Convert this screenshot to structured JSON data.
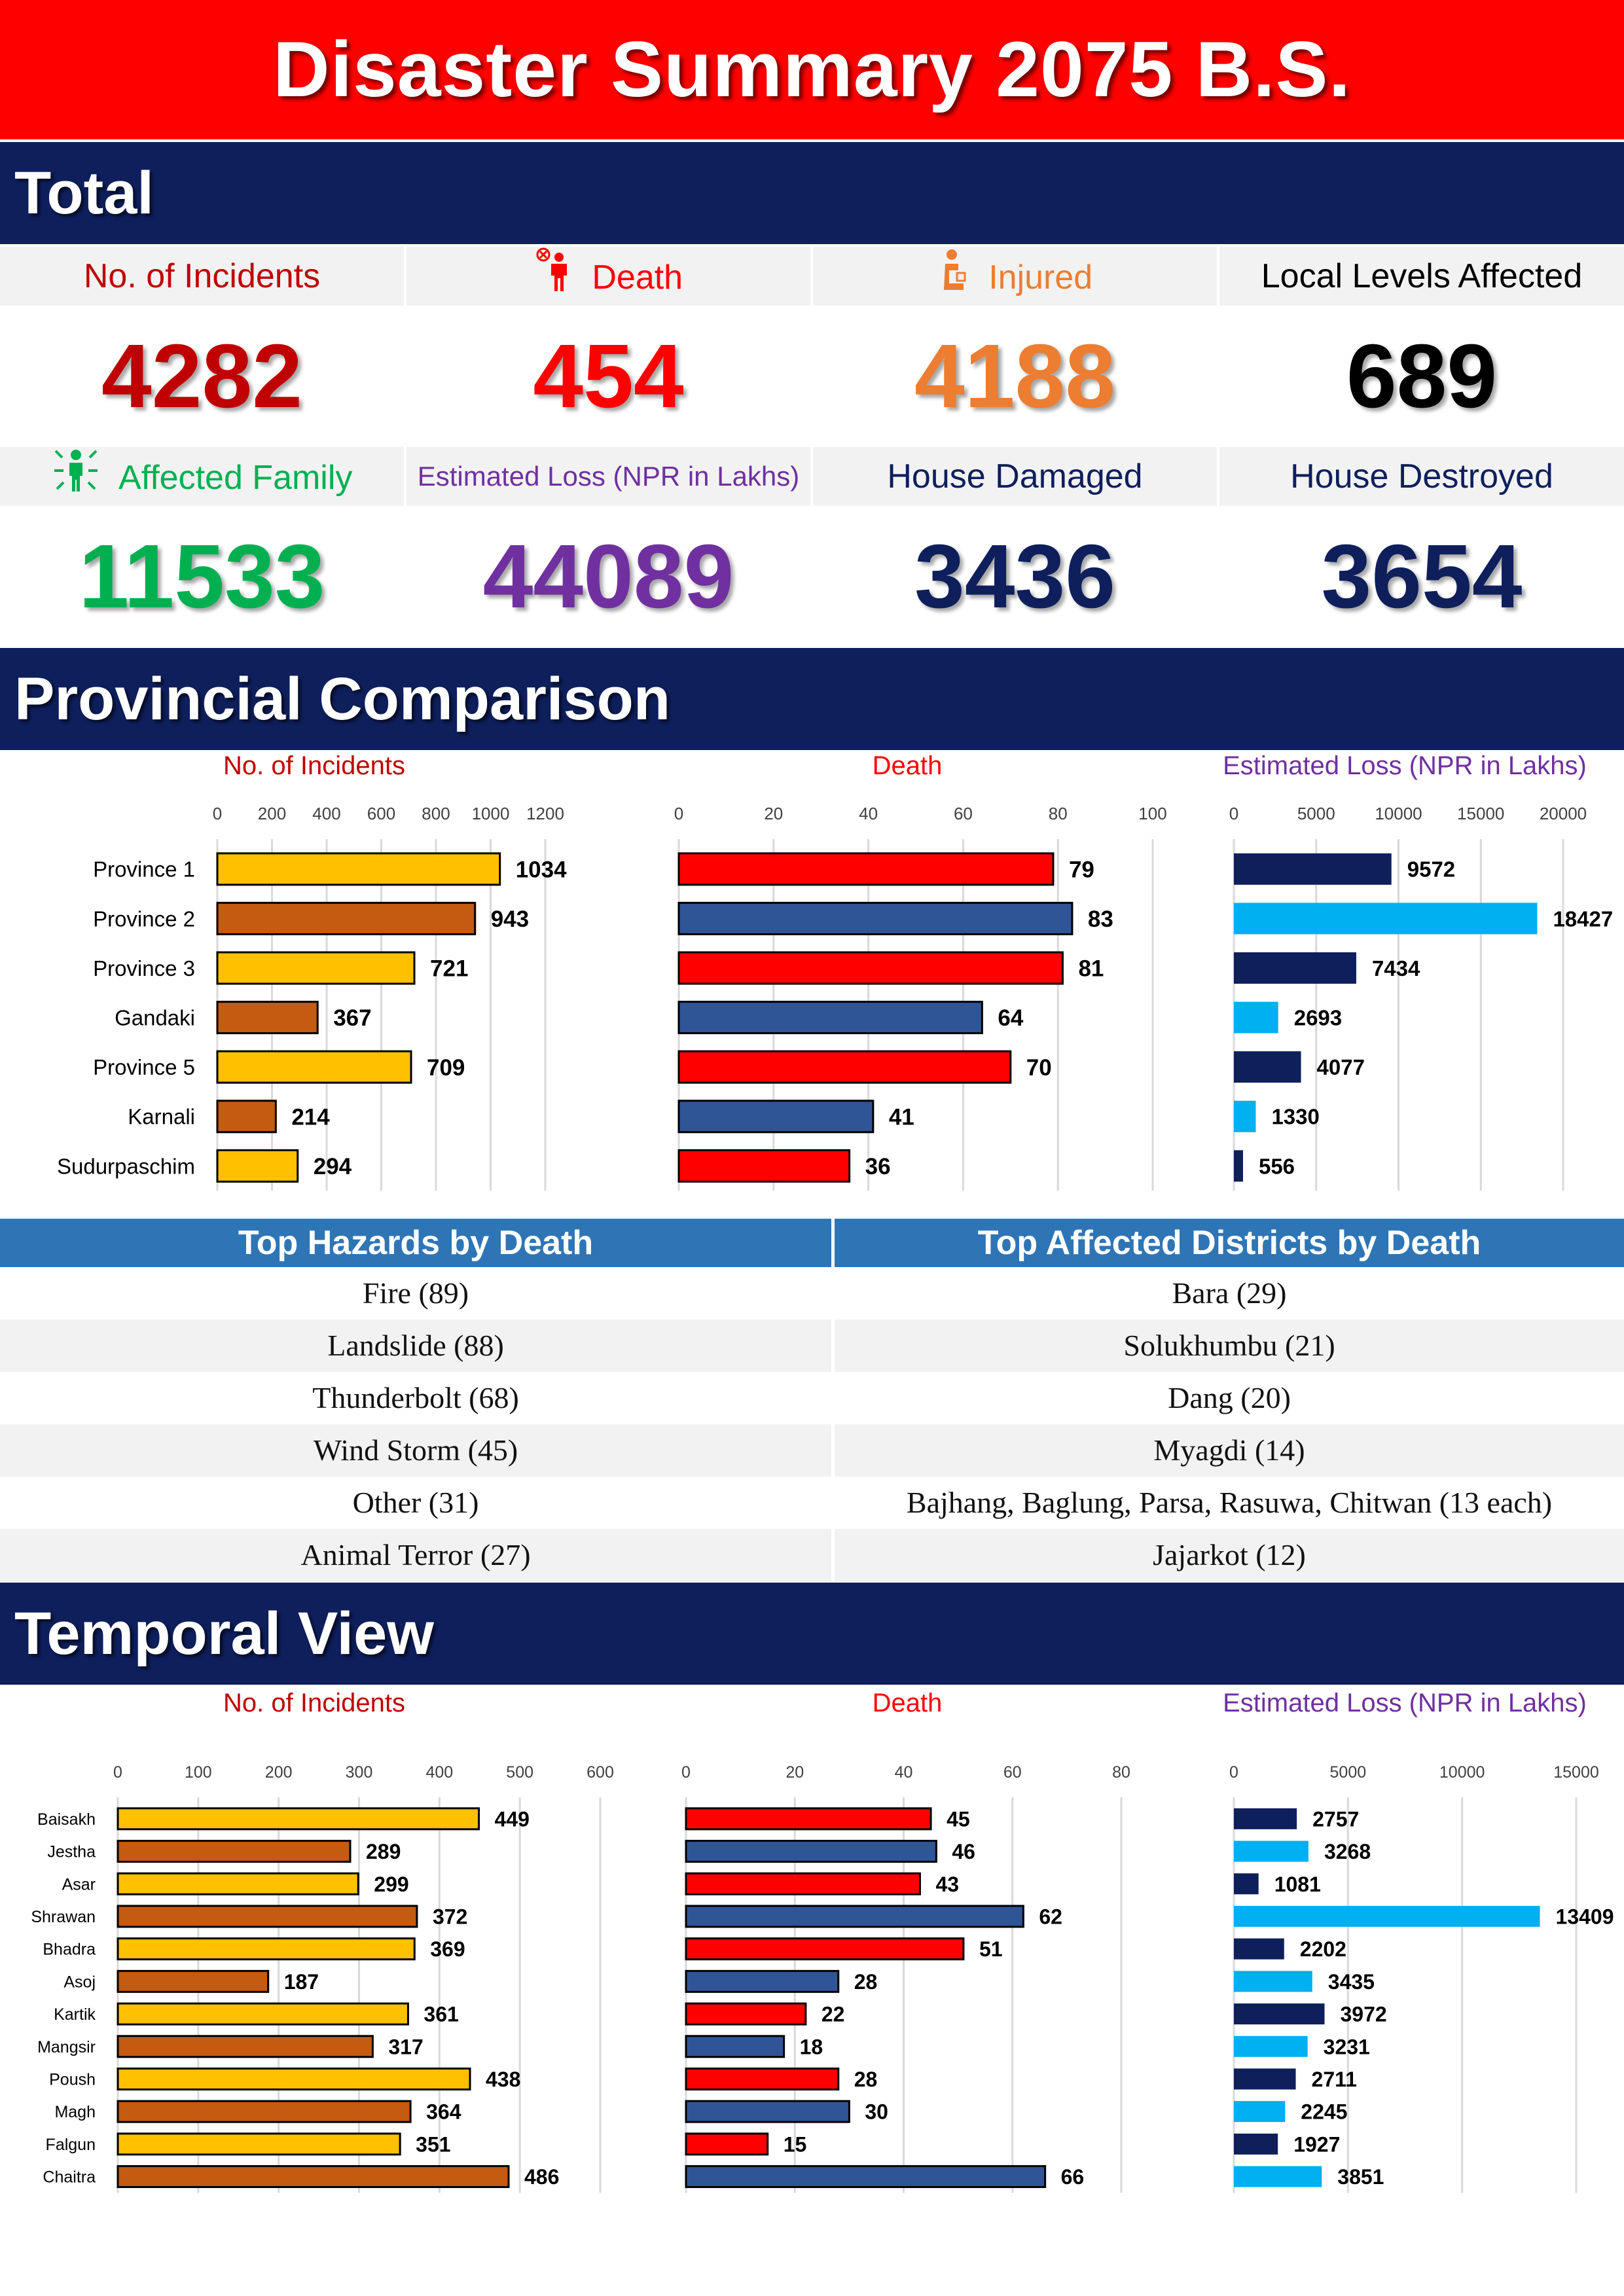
{
  "title": "Disaster Summary 2075 B.S.",
  "sections": {
    "total": "Total",
    "provincial": "Provincial Comparison",
    "temporal": "Temporal View"
  },
  "stats": [
    {
      "label": "No. of Incidents",
      "value": "4282",
      "color": "#c00000",
      "icon": ""
    },
    {
      "label": "Death",
      "value": "454",
      "color": "#fe0000",
      "icon": "person-death-icon"
    },
    {
      "label": "Injured",
      "value": "4188",
      "color": "#ed7d31",
      "icon": "person-injured-icon"
    },
    {
      "label": "Local Levels Affected",
      "value": "689",
      "color": "#000000",
      "icon": ""
    },
    {
      "label": "Affected Family",
      "value": "11533",
      "color": "#00b050",
      "icon": "affected-family-icon"
    },
    {
      "label": "Estimated Loss (NPR in Lakhs)",
      "value": "44089",
      "color": "#7030a0",
      "icon": ""
    },
    {
      "label": "House Damaged",
      "value": "3436",
      "color": "#0e1f5c",
      "icon": ""
    },
    {
      "label": "House Destroyed",
      "value": "3654",
      "color": "#0e1f5c",
      "icon": ""
    }
  ],
  "colors": {
    "gold": "#ffc000",
    "rust": "#c55a11",
    "red": "#fe0000",
    "blue": "#2f5597",
    "navy": "#0e1f5c",
    "cyan": "#00b0f0"
  },
  "chart_data": [
    {
      "id": "prov-incidents",
      "type": "bar",
      "orientation": "horizontal",
      "title": "No. of Incidents",
      "categories": [
        "Province 1",
        "Province 2",
        "Province 3",
        "Gandaki",
        "Province 5",
        "Karnali",
        "Sudurpaschim"
      ],
      "values": [
        1034,
        943,
        721,
        367,
        709,
        214,
        294
      ],
      "xlim": [
        0,
        1200
      ],
      "ticks": [
        0,
        200,
        400,
        600,
        800,
        1000,
        1200
      ],
      "grid": true,
      "bar_colors": [
        "#ffc000",
        "#c55a11"
      ]
    },
    {
      "id": "prov-death",
      "type": "bar",
      "orientation": "horizontal",
      "title": "Death",
      "categories": [
        "Province 1",
        "Province 2",
        "Province 3",
        "Gandaki",
        "Province 5",
        "Karnali",
        "Sudurpaschim"
      ],
      "values": [
        79,
        83,
        81,
        64,
        70,
        41,
        36
      ],
      "xlim": [
        0,
        100
      ],
      "ticks": [
        0,
        20,
        40,
        60,
        80,
        100
      ],
      "grid": true,
      "bar_colors": [
        "#fe0000",
        "#2f5597"
      ]
    },
    {
      "id": "prov-loss",
      "type": "bar",
      "orientation": "horizontal",
      "title": "Estimated Loss (NPR in Lakhs)",
      "categories": [
        "Province 1",
        "Province 2",
        "Province 3",
        "Gandaki",
        "Province 5",
        "Karnali",
        "Sudurpaschim"
      ],
      "values": [
        9572,
        18427,
        7434,
        2693,
        4077,
        1330,
        556
      ],
      "xlim": [
        0,
        20000
      ],
      "ticks": [
        0,
        5000,
        10000,
        15000,
        20000
      ],
      "grid": true,
      "bar_colors": [
        "#0e1f5c",
        "#00b0f0"
      ]
    },
    {
      "id": "month-incidents",
      "type": "bar",
      "orientation": "horizontal",
      "title": "No. of Incidents",
      "categories": [
        "Baisakh",
        "Jestha",
        "Asar",
        "Shrawan",
        "Bhadra",
        "Asoj",
        "Kartik",
        "Mangsir",
        "Poush",
        "Magh",
        "Falgun",
        "Chaitra"
      ],
      "values": [
        449,
        289,
        299,
        372,
        369,
        187,
        361,
        317,
        438,
        364,
        351,
        486
      ],
      "xlim": [
        0,
        600
      ],
      "ticks": [
        0,
        100,
        200,
        300,
        400,
        500,
        600
      ],
      "grid": true,
      "bar_colors": [
        "#ffc000",
        "#c55a11",
        "#ffc000",
        "#c55a11",
        "#ffc000",
        "#c55a11",
        "#ffc000",
        "#c55a11",
        "#ffc000",
        "#c55a11",
        "#ffc000",
        "#c55a11"
      ]
    },
    {
      "id": "month-death",
      "type": "bar",
      "orientation": "horizontal",
      "title": "Death",
      "categories": [
        "Baisakh",
        "Jestha",
        "Asar",
        "Shrawan",
        "Bhadra",
        "Asoj",
        "Kartik",
        "Mangsir",
        "Poush",
        "Magh",
        "Falgun",
        "Chaitra"
      ],
      "values": [
        45,
        46,
        43,
        62,
        51,
        28,
        22,
        18,
        28,
        30,
        15,
        66
      ],
      "xlim": [
        0,
        80
      ],
      "ticks": [
        0,
        20,
        40,
        60,
        80
      ],
      "grid": true,
      "bar_colors": [
        "#fe0000",
        "#2f5597",
        "#fe0000",
        "#2f5597",
        "#fe0000",
        "#2f5597",
        "#fe0000",
        "#2f5597",
        "#fe0000",
        "#2f5597",
        "#fe0000",
        "#2f5597"
      ]
    },
    {
      "id": "month-loss",
      "type": "bar",
      "orientation": "horizontal",
      "title": "Estimated Loss (NPR in Lakhs)",
      "categories": [
        "Baisakh",
        "Jestha",
        "Asar",
        "Shrawan",
        "Bhadra",
        "Asoj",
        "Kartik",
        "Mangsir",
        "Poush",
        "Magh",
        "Falgun",
        "Chaitra"
      ],
      "values": [
        2757,
        3268,
        1081,
        13409,
        2202,
        3435,
        3972,
        3231,
        2711,
        2245,
        1927,
        3851
      ],
      "xlim": [
        0,
        15000
      ],
      "ticks": [
        0,
        5000,
        10000,
        15000
      ],
      "grid": true,
      "bar_colors": [
        "#0e1f5c",
        "#00b0f0",
        "#0e1f5c",
        "#00b0f0",
        "#0e1f5c",
        "#00b0f0",
        "#0e1f5c",
        "#00b0f0",
        "#0e1f5c",
        "#00b0f0",
        "#0e1f5c",
        "#00b0f0"
      ]
    }
  ],
  "tables": {
    "hazards_header": "Top Hazards by Death",
    "districts_header": "Top Affected Districts by Death",
    "hazards": [
      "Fire (89)",
      "Landslide (88)",
      "Thunderbolt (68)",
      "Wind Storm (45)",
      "Other (31)",
      "Animal Terror (27)"
    ],
    "districts": [
      "Bara (29)",
      "Solukhumbu (21)",
      "Dang (20)",
      "Myagdi (14)",
      "Bajhang, Baglung, Parsa, Rasuwa, Chitwan (13 each)",
      "Jajarkot (12)"
    ]
  }
}
